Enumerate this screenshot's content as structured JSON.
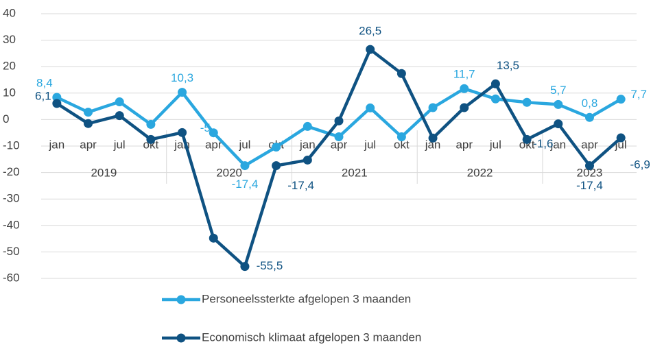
{
  "chart_data": {
    "type": "line",
    "categories": [
      "jan",
      "apr",
      "jul",
      "okt",
      "jan",
      "apr",
      "jul",
      "okt",
      "jan",
      "apr",
      "jul",
      "okt",
      "jan",
      "apr",
      "jul",
      "okt",
      "jan",
      "apr",
      "jul"
    ],
    "year_groups": [
      "2019",
      "2020",
      "2021",
      "2022",
      "2023"
    ],
    "series": [
      {
        "name": "Personeelssterkte afgelopen 3 maanden",
        "color": "#2aa7df",
        "values": [
          8.4,
          2.8,
          6.7,
          -1.8,
          10.3,
          -5,
          -17.4,
          -10.4,
          -2.6,
          -6.5,
          4.4,
          -6.5,
          4.5,
          11.7,
          7.8,
          6.5,
          5.7,
          0.8,
          7.7
        ],
        "value_labels": [
          "8,4",
          null,
          null,
          null,
          "10,3",
          "-5",
          "-17,4",
          null,
          null,
          null,
          null,
          null,
          null,
          "11,7",
          null,
          null,
          "5,7",
          "0,8",
          "7,7"
        ]
      },
      {
        "name": "Economisch klimaat afgelopen 3 maanden",
        "color": "#0f5282",
        "values": [
          6.1,
          -1.5,
          1.5,
          -7.5,
          -4.9,
          -44.8,
          -55.5,
          -17.4,
          -15.3,
          -0.5,
          26.5,
          17.4,
          -7,
          4.5,
          13.5,
          -7.5,
          -1.6,
          -17.4,
          -6.9
        ],
        "value_labels": [
          "6,1",
          null,
          null,
          null,
          null,
          null,
          "-55,5",
          "-17,4",
          null,
          null,
          "26,5",
          null,
          null,
          null,
          "13,5",
          null,
          "-1,6",
          "-17,4",
          "-6,9"
        ]
      }
    ],
    "ylim": [
      -60,
      40
    ],
    "yticks": [
      -60,
      -50,
      -40,
      -30,
      -20,
      -10,
      0,
      10,
      20,
      30,
      40
    ],
    "grid": true,
    "legend": "bottom"
  }
}
